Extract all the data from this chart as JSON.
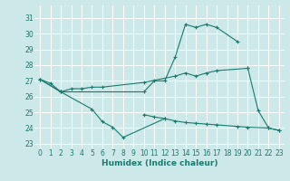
{
  "xlabel": "Humidex (Indice chaleur)",
  "background_color": "#cce8e8",
  "line_color": "#1a7a6e",
  "grid_color": "#b0d4d4",
  "xlim": [
    -0.5,
    23.5
  ],
  "ylim": [
    22.7,
    31.8
  ],
  "yticks": [
    23,
    24,
    25,
    26,
    27,
    28,
    29,
    30,
    31
  ],
  "xticks": [
    0,
    1,
    2,
    3,
    4,
    5,
    6,
    7,
    8,
    9,
    10,
    11,
    12,
    13,
    14,
    15,
    16,
    17,
    18,
    19,
    20,
    21,
    22,
    23
  ],
  "series": [
    {
      "x": [
        0,
        1,
        2,
        10,
        11,
        12,
        13,
        14,
        15,
        16,
        17,
        19
      ],
      "y": [
        27.1,
        26.85,
        26.3,
        26.3,
        27.0,
        27.0,
        28.5,
        30.6,
        30.4,
        30.6,
        30.4,
        29.5
      ]
    },
    {
      "x": [
        0,
        2,
        3,
        4,
        5,
        6,
        10,
        13,
        14,
        15,
        16,
        17,
        20
      ],
      "y": [
        27.1,
        26.3,
        26.5,
        26.5,
        26.6,
        26.6,
        26.9,
        27.3,
        27.5,
        27.3,
        27.5,
        27.65,
        27.8
      ]
    },
    {
      "x": [
        0,
        2,
        5,
        6,
        7,
        8,
        12
      ],
      "y": [
        27.1,
        26.3,
        25.2,
        24.4,
        24.05,
        23.4,
        24.6
      ]
    },
    {
      "x": [
        20,
        21,
        22,
        23
      ],
      "y": [
        27.8,
        25.1,
        24.0,
        23.85
      ]
    },
    {
      "x": [
        10,
        11,
        12,
        13,
        14,
        15,
        16,
        17,
        19,
        20,
        22,
        23
      ],
      "y": [
        24.85,
        24.7,
        24.6,
        24.45,
        24.35,
        24.3,
        24.25,
        24.2,
        24.1,
        24.05,
        24.0,
        23.85
      ]
    }
  ]
}
